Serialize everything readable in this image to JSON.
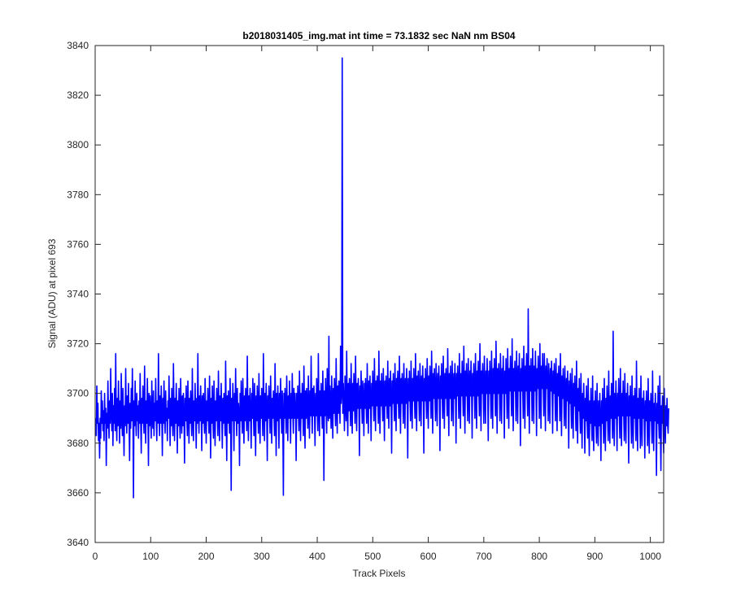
{
  "colors": {
    "line": "#0000ff",
    "axes": "#262626",
    "background": "#ffffff"
  },
  "chart_data": {
    "type": "line",
    "title": "b2018031405_img.mat int time = 73.1832 sec  NaN nm BS04",
    "xlabel": "Track Pixels",
    "ylabel": "Signal (ADU) at pixel 693",
    "xlim": [
      0,
      1024
    ],
    "ylim": [
      3640,
      3840
    ],
    "x_ticks": [
      0,
      100,
      200,
      300,
      400,
      500,
      600,
      700,
      800,
      900,
      1000
    ],
    "y_ticks": [
      3640,
      3660,
      3680,
      3700,
      3720,
      3740,
      3760,
      3780,
      3800,
      3820,
      3840
    ],
    "grid": false,
    "legend": "none",
    "series": [
      {
        "x_start": 1,
        "x_step": 1,
        "values": [
          3690,
          3683,
          3703,
          3688,
          3696,
          3681,
          3688,
          3674,
          3690,
          3682,
          3701,
          3688,
          3697,
          3685,
          3693,
          3681,
          3700,
          3688,
          3694,
          3671,
          3692,
          3686,
          3705,
          3690,
          3682,
          3697,
          3688,
          3710,
          3693,
          3685,
          3700,
          3679,
          3695,
          3688,
          3702,
          3685,
          3716,
          3690,
          3681,
          3698,
          3687,
          3705,
          3692,
          3680,
          3697,
          3686,
          3708,
          3690,
          3683,
          3702,
          3689,
          3675,
          3695,
          3687,
          3710,
          3691,
          3684,
          3699,
          3688,
          3704,
          3690,
          3673,
          3696,
          3686,
          3702,
          3689,
          3710,
          3693,
          3658,
          3697,
          3687,
          3705,
          3690,
          3683,
          3700,
          3689,
          3695,
          3682,
          3697,
          3688,
          3708,
          3690,
          3676,
          3698,
          3688,
          3703,
          3690,
          3684,
          3711,
          3692,
          3680,
          3697,
          3688,
          3706,
          3692,
          3671,
          3700,
          3687,
          3699,
          3690,
          3682,
          3705,
          3690,
          3686,
          3701,
          3683,
          3696,
          3689,
          3706,
          3691,
          3681,
          3697,
          3688,
          3716,
          3692,
          3683,
          3699,
          3688,
          3703,
          3692,
          3675,
          3698,
          3688,
          3705,
          3690,
          3684,
          3701,
          3689,
          3694,
          3681,
          3697,
          3690,
          3707,
          3692,
          3679,
          3698,
          3687,
          3702,
          3690,
          3683,
          3712,
          3693,
          3681,
          3698,
          3688,
          3704,
          3692,
          3676,
          3697,
          3687,
          3702,
          3690,
          3682,
          3706,
          3692,
          3684,
          3699,
          3687,
          3700,
          3691,
          3672,
          3698,
          3689,
          3703,
          3691,
          3683,
          3705,
          3693,
          3680,
          3698,
          3688,
          3701,
          3691,
          3683,
          3710,
          3692,
          3681,
          3697,
          3689,
          3704,
          3691,
          3678,
          3698,
          3688,
          3716,
          3692,
          3684,
          3699,
          3689,
          3703,
          3692,
          3677,
          3699,
          3688,
          3700,
          3691,
          3684,
          3706,
          3692,
          3680,
          3697,
          3689,
          3702,
          3691,
          3684,
          3707,
          3693,
          3674,
          3698,
          3688,
          3703,
          3692,
          3682,
          3705,
          3692,
          3679,
          3697,
          3689,
          3702,
          3692,
          3683,
          3709,
          3693,
          3681,
          3699,
          3689,
          3704,
          3691,
          3678,
          3698,
          3688,
          3700,
          3692,
          3683,
          3713,
          3692,
          3673,
          3699,
          3688,
          3701,
          3692,
          3684,
          3706,
          3693,
          3661,
          3698,
          3689,
          3704,
          3692,
          3677,
          3700,
          3689,
          3710,
          3692,
          3683,
          3702,
          3688,
          3696,
          3692,
          3671,
          3700,
          3689,
          3705,
          3692,
          3684,
          3706,
          3693,
          3680,
          3699,
          3689,
          3702,
          3693,
          3685,
          3715,
          3693,
          3681,
          3699,
          3689,
          3702,
          3692,
          3678,
          3700,
          3690,
          3706,
          3692,
          3683,
          3704,
          3693,
          3675,
          3699,
          3689,
          3703,
          3693,
          3684,
          3708,
          3693,
          3680,
          3699,
          3690,
          3702,
          3692,
          3683,
          3716,
          3693,
          3681,
          3700,
          3689,
          3704,
          3692,
          3673,
          3699,
          3690,
          3703,
          3692,
          3684,
          3707,
          3693,
          3680,
          3698,
          3690,
          3701,
          3693,
          3683,
          3712,
          3693,
          3675,
          3700,
          3689,
          3703,
          3693,
          3678,
          3700,
          3690,
          3706,
          3693,
          3684,
          3701,
          3689,
          3659,
          3700,
          3690,
          3702,
          3693,
          3684,
          3707,
          3694,
          3681,
          3699,
          3690,
          3705,
          3693,
          3680,
          3700,
          3690,
          3708,
          3693,
          3684,
          3702,
          3690,
          3700,
          3693,
          3673,
          3700,
          3690,
          3703,
          3693,
          3685,
          3709,
          3694,
          3681,
          3700,
          3690,
          3704,
          3693,
          3683,
          3711,
          3694,
          3678,
          3701,
          3690,
          3702,
          3694,
          3686,
          3707,
          3694,
          3682,
          3701,
          3691,
          3715,
          3694,
          3684,
          3702,
          3691,
          3703,
          3694,
          3679,
          3700,
          3691,
          3706,
          3694,
          3685,
          3716,
          3695,
          3683,
          3701,
          3691,
          3704,
          3694,
          3686,
          3709,
          3695,
          3665,
          3701,
          3691,
          3706,
          3695,
          3684,
          3710,
          3695,
          3689,
          3723,
          3690,
          3703,
          3695,
          3686,
          3707,
          3696,
          3682,
          3702,
          3692,
          3706,
          3695,
          3687,
          3714,
          3696,
          3684,
          3703,
          3692,
          3705,
          3696,
          3688,
          3719,
          3696,
          3700,
          3835,
          3692,
          3704,
          3696,
          3685,
          3707,
          3697,
          3689,
          3717,
          3696,
          3683,
          3704,
          3693,
          3706,
          3697,
          3687,
          3712,
          3697,
          3684,
          3704,
          3693,
          3708,
          3697,
          3688,
          3715,
          3697,
          3685,
          3704,
          3694,
          3706,
          3697,
          3675,
          3703,
          3694,
          3709,
          3697,
          3688,
          3705,
          3697,
          3683,
          3704,
          3694,
          3706,
          3697,
          3688,
          3712,
          3697,
          3684,
          3705,
          3694,
          3707,
          3697,
          3681,
          3704,
          3695,
          3709,
          3698,
          3689,
          3714,
          3698,
          3685,
          3705,
          3695,
          3707,
          3698,
          3688,
          3717,
          3698,
          3684,
          3705,
          3695,
          3708,
          3698,
          3689,
          3710,
          3698,
          3681,
          3705,
          3695,
          3707,
          3698,
          3690,
          3713,
          3698,
          3686,
          3706,
          3695,
          3709,
          3698,
          3676,
          3705,
          3696,
          3708,
          3698,
          3689,
          3712,
          3698,
          3685,
          3706,
          3696,
          3709,
          3698,
          3690,
          3715,
          3699,
          3684,
          3706,
          3696,
          3708,
          3699,
          3688,
          3712,
          3699,
          3686,
          3706,
          3696,
          3710,
          3699,
          3674,
          3706,
          3697,
          3709,
          3699,
          3689,
          3713,
          3699,
          3686,
          3706,
          3697,
          3710,
          3699,
          3690,
          3716,
          3699,
          3685,
          3707,
          3697,
          3709,
          3699,
          3689,
          3712,
          3700,
          3687,
          3707,
          3697,
          3711,
          3700,
          3676,
          3706,
          3697,
          3710,
          3700,
          3690,
          3714,
          3700,
          3686,
          3707,
          3697,
          3711,
          3700,
          3690,
          3717,
          3700,
          3684,
          3708,
          3698,
          3710,
          3700,
          3689,
          3712,
          3700,
          3687,
          3708,
          3698,
          3711,
          3700,
          3677,
          3707,
          3698,
          3712,
          3700,
          3690,
          3715,
          3701,
          3686,
          3708,
          3698,
          3710,
          3701,
          3691,
          3718,
          3701,
          3683,
          3708,
          3698,
          3711,
          3701,
          3689,
          3713,
          3701,
          3687,
          3708,
          3698,
          3712,
          3701,
          3680,
          3708,
          3699,
          3711,
          3701,
          3690,
          3716,
          3701,
          3686,
          3708,
          3699,
          3713,
          3701,
          3691,
          3719,
          3701,
          3684,
          3709,
          3699,
          3712,
          3701,
          3689,
          3714,
          3702,
          3688,
          3709,
          3699,
          3713,
          3702,
          3682,
          3708,
          3699,
          3712,
          3702,
          3690,
          3716,
          3702,
          3686,
          3709,
          3699,
          3713,
          3702,
          3691,
          3720,
          3702,
          3685,
          3709,
          3700,
          3712,
          3702,
          3688,
          3715,
          3702,
          3688,
          3709,
          3700,
          3714,
          3702,
          3681,
          3709,
          3700,
          3713,
          3702,
          3690,
          3717,
          3702,
          3686,
          3710,
          3700,
          3714,
          3702,
          3691,
          3721,
          3703,
          3684,
          3710,
          3700,
          3712,
          3703,
          3689,
          3716,
          3703,
          3688,
          3710,
          3700,
          3715,
          3703,
          3682,
          3709,
          3700,
          3714,
          3703,
          3690,
          3718,
          3703,
          3686,
          3710,
          3701,
          3715,
          3703,
          3691,
          3722,
          3703,
          3685,
          3710,
          3701,
          3713,
          3703,
          3689,
          3717,
          3703,
          3688,
          3711,
          3701,
          3716,
          3703,
          3679,
          3710,
          3701,
          3714,
          3703,
          3690,
          3719,
          3703,
          3686,
          3711,
          3701,
          3716,
          3703,
          3691,
          3734,
          3704,
          3684,
          3711,
          3701,
          3714,
          3704,
          3689,
          3718,
          3704,
          3688,
          3711,
          3701,
          3717,
          3704,
          3683,
          3710,
          3702,
          3715,
          3704,
          3690,
          3720,
          3704,
          3686,
          3711,
          3702,
          3716,
          3704,
          3691,
          3716,
          3704,
          3685,
          3711,
          3702,
          3714,
          3704,
          3689,
          3712,
          3703,
          3688,
          3710,
          3701,
          3713,
          3703,
          3684,
          3709,
          3700,
          3712,
          3702,
          3689,
          3714,
          3702,
          3685,
          3708,
          3699,
          3711,
          3701,
          3689,
          3716,
          3701,
          3683,
          3707,
          3698,
          3710,
          3700,
          3687,
          3711,
          3699,
          3686,
          3706,
          3697,
          3709,
          3698,
          3678,
          3705,
          3696,
          3708,
          3697,
          3686,
          3710,
          3696,
          3682,
          3704,
          3695,
          3707,
          3695,
          3685,
          3713,
          3694,
          3680,
          3702,
          3693,
          3706,
          3693,
          3684,
          3708,
          3692,
          3678,
          3700,
          3690,
          3704,
          3691,
          3676,
          3698,
          3689,
          3703,
          3690,
          3682,
          3706,
          3689,
          3675,
          3697,
          3688,
          3702,
          3689,
          3681,
          3707,
          3688,
          3677,
          3697,
          3687,
          3701,
          3688,
          3680,
          3704,
          3688,
          3679,
          3697,
          3687,
          3700,
          3688,
          3673,
          3697,
          3688,
          3702,
          3689,
          3680,
          3706,
          3689,
          3677,
          3698,
          3689,
          3703,
          3690,
          3681,
          3709,
          3690,
          3680,
          3699,
          3690,
          3704,
          3691,
          3682,
          3725,
          3691,
          3679,
          3700,
          3690,
          3705,
          3692,
          3677,
          3700,
          3691,
          3706,
          3692,
          3682,
          3710,
          3692,
          3679,
          3700,
          3691,
          3705,
          3692,
          3681,
          3708,
          3692,
          3680,
          3700,
          3691,
          3704,
          3692,
          3672,
          3699,
          3691,
          3703,
          3691,
          3680,
          3707,
          3691,
          3678,
          3699,
          3690,
          3702,
          3691,
          3681,
          3713,
          3691,
          3677,
          3698,
          3690,
          3702,
          3691,
          3678,
          3707,
          3690,
          3679,
          3698,
          3690,
          3701,
          3690,
          3674,
          3697,
          3689,
          3701,
          3690,
          3679,
          3706,
          3690,
          3676,
          3697,
          3689,
          3700,
          3689,
          3680,
          3709,
          3689,
          3677,
          3696,
          3689,
          3700,
          3689,
          3667,
          3696,
          3688,
          3703,
          3689,
          3682,
          3707,
          3688,
          3669,
          3695,
          3688,
          3699,
          3688,
          3676,
          3702,
          3688,
          3680,
          3695,
          3687,
          3698,
          3688,
          3684,
          3694
        ]
      }
    ]
  }
}
